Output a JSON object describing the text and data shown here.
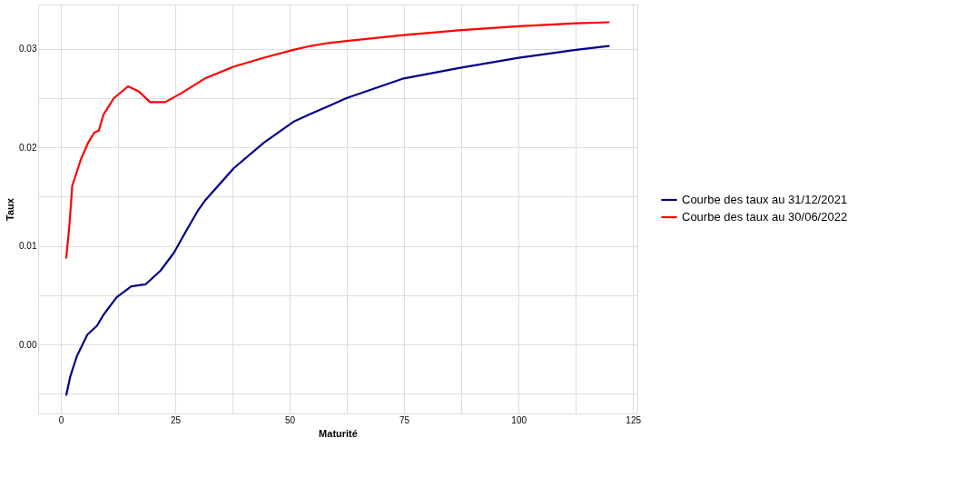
{
  "chart_data": {
    "type": "line",
    "xlabel": "Maturité",
    "ylabel": "Taux",
    "xlim": [
      -4.95,
      125.95
    ],
    "ylim": [
      -0.007,
      0.0345
    ],
    "xticks": [
      0,
      {
        "value": 12.5,
        "label": null
      },
      25,
      {
        "value": 37.5,
        "label": null
      },
      50,
      {
        "value": 62.5,
        "label": null
      },
      75,
      {
        "value": 87.5,
        "label": null
      },
      100,
      {
        "value": 112.5,
        "label": null
      },
      125
    ],
    "yticks": [
      {
        "value": -0.005,
        "label": null
      },
      {
        "value": 0,
        "label": "0.00"
      },
      {
        "value": 0.005,
        "label": null
      },
      {
        "value": 0.01,
        "label": "0.01"
      },
      {
        "value": 0.015,
        "label": null
      },
      {
        "value": 0.02,
        "label": "0.02"
      },
      {
        "value": 0.025,
        "label": null
      },
      {
        "value": 0.03,
        "label": "0.03"
      }
    ],
    "grid": true,
    "legend": "right",
    "line_style": "solid",
    "series": [
      {
        "name": "Courbe des taux au 31/12/2021",
        "color": "#00008b",
        "x": [
          1.2,
          2.1,
          3.5,
          5.8,
          7.9,
          9.3,
          12.2,
          15.4,
          18.5,
          21.8,
          24.7,
          27.6,
          30.1,
          31.5,
          37.8,
          44.4,
          50.8,
          54.6,
          58.5,
          62.4,
          74.9,
          87.5,
          100,
          112.5,
          119.7
        ],
        "values": [
          -0.0051,
          -0.0032,
          -0.0012,
          0.001,
          0.0019,
          0.003,
          0.0048,
          0.0059,
          0.0061,
          0.0075,
          0.0093,
          0.0117,
          0.0137,
          0.0146,
          0.0179,
          0.0205,
          0.0226,
          0.0234,
          0.0242,
          0.025,
          0.027,
          0.0281,
          0.0291,
          0.0299,
          0.0303
        ]
      },
      {
        "name": "Courbe des taux au 30/06/2022",
        "color": "#ff0000",
        "x": [
          1.2,
          1.9,
          2.5,
          4.4,
          6,
          7.3,
          8.3,
          9.3,
          11.6,
          14.7,
          17,
          19.5,
          22.8,
          26.3,
          31.5,
          37.8,
          44.4,
          50.8,
          54.6,
          58.5,
          62.4,
          74.9,
          87.5,
          100,
          112.5,
          119.7
        ],
        "values": [
          0.0088,
          0.0122,
          0.0161,
          0.0188,
          0.0205,
          0.0215,
          0.0217,
          0.0233,
          0.025,
          0.0262,
          0.0257,
          0.0246,
          0.0246,
          0.0255,
          0.027,
          0.0282,
          0.0291,
          0.0299,
          0.0303,
          0.0306,
          0.0308,
          0.0314,
          0.0319,
          0.0323,
          0.0326,
          0.0327
        ]
      }
    ]
  }
}
